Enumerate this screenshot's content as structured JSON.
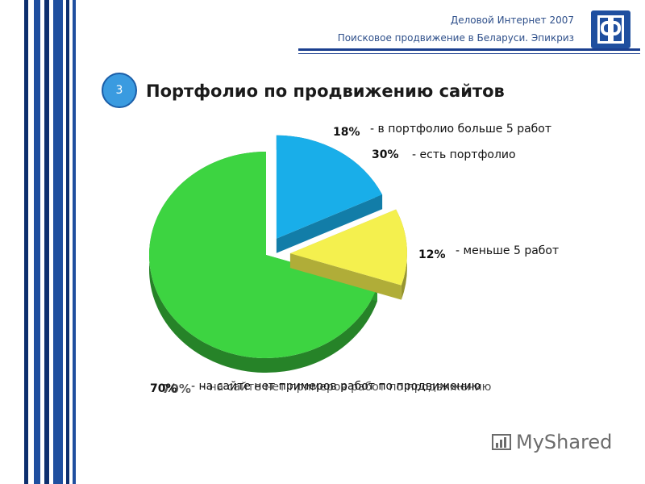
{
  "header": {
    "line1": "Деловой Интернет 2007",
    "line2": "Поисковое продвижение в Беларуси. Эпикриз"
  },
  "slide": {
    "number": "3",
    "title": "Портфолио по продвижению сайтов"
  },
  "chart_data": {
    "type": "pie",
    "title": "Портфолио по продвижению сайтов",
    "slices": [
      {
        "label": "в портфолио больше 5 работ",
        "pct_label": "18%",
        "value": 18,
        "color": "#19aee9"
      },
      {
        "label": "меньше 5 работ",
        "pct_label": "12%",
        "value": 12,
        "color": "#f4f04e"
      },
      {
        "label": "на сайте нет примеров работ по продвижению",
        "pct_label": "70%",
        "value": 70,
        "color": "#3dd441"
      }
    ],
    "group_label": {
      "pct_label": "30%",
      "label": "есть портфолио"
    },
    "label_prefix": "- "
  },
  "overlay_ghost": {
    "pct": "70%",
    "text": "- на сайте нет примеров работ по продвижению"
  },
  "watermark": {
    "text": "MyShared"
  },
  "logo": {
    "letter": "Ф"
  },
  "colors": {
    "stripe_blue": "#1f4f9f",
    "stripe_dark": "#0d2f6e",
    "accent": "#2e4f8a"
  }
}
